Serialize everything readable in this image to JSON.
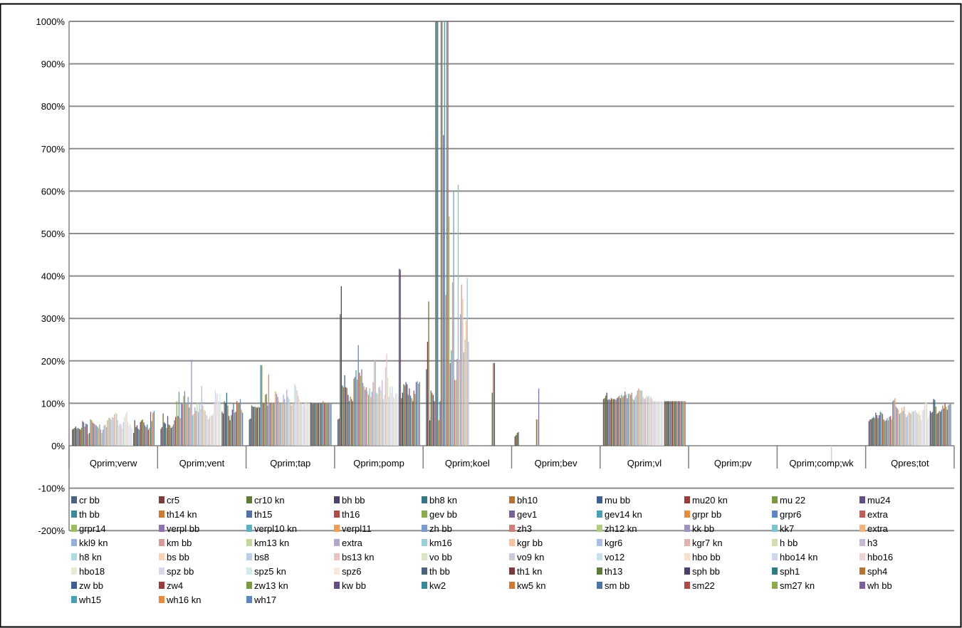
{
  "chart_data": {
    "type": "bar",
    "title": "",
    "xlabel": "",
    "ylabel": "",
    "ylim": [
      -2,
      10
    ],
    "y_format": "percent",
    "y_ticks": [
      "1000%",
      "900%",
      "800%",
      "700%",
      "600%",
      "500%",
      "400%",
      "300%",
      "200%",
      "100%",
      "0%",
      "-100%",
      "-200%"
    ],
    "y_tick_values": [
      10,
      9,
      8,
      7,
      6,
      5,
      4,
      3,
      2,
      1,
      0,
      -1,
      -2
    ],
    "grid": "horizontal",
    "legend_position": "bottom",
    "legend_columns": 10,
    "categories": [
      "Qprim;verw",
      "Qprim;vent",
      "Qprim;tap",
      "Qprim;pomp",
      "Qprim;koel",
      "Qprim;bev",
      "Qprim;vl",
      "Qprim;pv",
      "Qprim;comp;wk",
      "Qpres;tot"
    ],
    "series_names": [
      "cr bb",
      "cr5",
      "cr10 kn",
      "bh bb",
      "bh8 kn",
      "bh10",
      "mu bb",
      "mu20 kn",
      "mu 22",
      "mu24",
      "th bb",
      "th14 kn",
      "th15",
      "th16",
      "gev bb",
      "gev1",
      "gev14 kn",
      "grpr bb",
      "grpr6",
      "extra",
      "grpr14",
      "verpl bb",
      "verpl10 kn",
      "verpl11",
      "zh bb",
      "zh3",
      "zh12 kn",
      "kk bb",
      "kk7",
      "extra",
      "kkl9 kn",
      "km bb",
      "km13 kn",
      "extra",
      "km16",
      "kgr bb",
      "kgr6",
      "kgr7 kn",
      "h bb",
      "h3",
      "h8 kn",
      "bs bb",
      "bs8",
      "bs13 kn",
      "vo bb",
      "vo9 kn",
      "vo12",
      "hbo bb",
      "hbo14 kn",
      "hbo16",
      "hbo18",
      "spz bb",
      "spz5 kn",
      "spz6",
      "th bb",
      "th1 kn",
      "th13",
      "sph bb",
      "sph1",
      "sph4",
      "zw bb",
      "zw4",
      "zw13 kn",
      "kw bb",
      "kw2",
      "kw5 kn",
      "sm bb",
      "sm22",
      "sm27 kn",
      "wh bb",
      "wh15",
      "wh16 kn",
      "wh17"
    ],
    "series_colors": [
      "#4a6380",
      "#7d3b3b",
      "#5e7a37",
      "#4f3f6a",
      "#2f7a86",
      "#b8712e",
      "#3f5f94",
      "#9b3b38",
      "#7a9a3e",
      "#634d85",
      "#3a8a9a",
      "#d07a30",
      "#4f72a8",
      "#b24a47",
      "#8bab4c",
      "#7a619c",
      "#48a0b3",
      "#e88b3a",
      "#5c86c4",
      "#c85a56",
      "#9dbd5c",
      "#8c73ad",
      "#58b2c6",
      "#f29d55",
      "#7a9bd0",
      "#d27c78",
      "#b1cc7e",
      "#a392c0",
      "#7ec3d3",
      "#f6b07a",
      "#95b0da",
      "#db9a97",
      "#c2d799",
      "#b4a7cc",
      "#9ad0dd",
      "#f8c39b",
      "#a9bfe2",
      "#e3b1af",
      "#d0e0b0",
      "#c3b9d6",
      "#b0dae4",
      "#fad2b4",
      "#bccde9",
      "#eac4c2",
      "#dbe7c4",
      "#d0c8df",
      "#c3e2ea",
      "#fcdfc8",
      "#cbd8ee",
      "#efd3d2",
      "#e4edd4",
      "#dbd5e7",
      "#d2e9ef",
      "#fde8d8",
      "#4a6380",
      "#7d3b3b",
      "#5e7a37",
      "#4f3f6a",
      "#2f7a86",
      "#b8712e",
      "#3f5f94",
      "#9b3b38",
      "#7a9a3e",
      "#634d85",
      "#3a8a9a",
      "#d07a30",
      "#4f72a8",
      "#b24a47",
      "#8bab4c",
      "#7a619c",
      "#48a0b3",
      "#e88b3a",
      "#5c86c4"
    ],
    "values_by_category": [
      [
        0.38,
        0.4,
        0.42,
        0.45,
        0.4,
        0.42,
        0.4,
        0.38,
        0.42,
        0.58,
        0.55,
        0.45,
        0.52,
        0.5,
        0.28,
        0.3,
        0.62,
        0.6,
        0.55,
        0.52,
        0.5,
        0.48,
        0.45,
        0.42,
        0.5,
        0.38,
        0.3,
        0.38,
        0.48,
        0.5,
        0.44,
        0.6,
        0.66,
        0.65,
        0.62,
        0.67,
        0.66,
        0.74,
        0.78,
        0.76,
        0.6,
        0.48,
        0.52,
        0.5,
        0.4,
        0.56,
        0.68,
        0.75,
        0.8,
        0.55,
        0.45,
        0.5,
        0.42,
        0.38,
        0.3,
        0.6,
        0.44,
        0.48,
        0.4,
        0.38,
        0.56,
        0.6,
        0.62,
        0.55,
        0.48,
        0.44,
        0.5,
        0.38,
        0.42,
        0.8,
        0.58,
        0.78,
        0.82
      ],
      [
        0.4,
        0.44,
        0.76,
        0.55,
        0.52,
        0.42,
        0.7,
        0.5,
        0.48,
        0.42,
        0.45,
        0.5,
        0.6,
        0.68,
        1.05,
        0.7,
        1.27,
        0.65,
        1.0,
        0.98,
        1.17,
        1.28,
        1.0,
        0.98,
        1.15,
        0.9,
        1.0,
        2.03,
        0.72,
        0.75,
        0.9,
        0.82,
        1.02,
        0.8,
        1.0,
        0.86,
        1.41,
        0.95,
        0.85,
        0.82,
        0.72,
        0.7,
        0.62,
        0.68,
        0.72,
        0.7,
        0.75,
        1.0,
        1.3,
        1.22,
        1.25,
        1.05,
        1.22,
        0.98,
        0.8,
        0.76,
        1.05,
        1.0,
        1.25,
        0.95,
        0.7,
        0.6,
        0.72,
        0.85,
        1.0,
        0.78,
        0.8,
        1.05,
        1.0,
        1.0,
        1.1,
        0.85,
        0.78
      ],
      [
        0.62,
        0.64,
        0.95,
        0.92,
        0.92,
        0.92,
        0.9,
        0.9,
        0.92,
        0.9,
        1.9,
        1.9,
        1.0,
        1.0,
        1.2,
        1.22,
        0.95,
        1.68,
        1.0,
        1.0,
        1.0,
        1.0,
        1.0,
        1.28,
        1.22,
        1.15,
        1.05,
        1.0,
        1.0,
        1.0,
        1.2,
        1.1,
        1.02,
        1.32,
        1.15,
        1.1,
        1.0,
        0.95,
        1.0,
        1.0,
        1.45,
        1.4,
        1.3,
        1.18,
        1.1,
        1.0,
        1.0,
        0.95,
        1.0,
        1.0,
        1.05,
        1.0,
        1.0,
        1.0,
        1.02,
        1.0,
        0.98,
        1.0,
        1.0,
        1.0,
        1.0,
        1.0,
        1.0,
        1.0,
        1.0,
        1.05,
        1.0,
        1.0,
        1.0,
        1.0,
        1.0,
        1.02,
        1.0
      ],
      [
        0.62,
        0.64,
        3.1,
        3.76,
        1.42,
        1.38,
        1.66,
        1.38,
        1.36,
        1.2,
        1.05,
        1.16,
        1.1,
        1.05,
        1.58,
        1.62,
        1.78,
        1.56,
        2.37,
        1.72,
        1.65,
        1.8,
        1.48,
        1.4,
        1.32,
        1.38,
        1.28,
        1.2,
        1.35,
        1.15,
        1.27,
        1.5,
        2.0,
        2.02,
        1.25,
        1.22,
        1.37,
        1.4,
        1.3,
        1.55,
        1.1,
        1.2,
        1.85,
        2.17,
        1.6,
        1.15,
        1.4,
        1.25,
        1.4,
        1.15,
        1.1,
        1.22,
        1.25,
        1.2,
        4.17,
        4.15,
        1.12,
        1.25,
        1.45,
        1.42,
        1.5,
        1.45,
        1.2,
        1.35,
        1.18,
        1.12,
        1.05,
        1.3,
        1.22,
        1.5,
        1.52,
        1.46,
        1.5
      ],
      [
        1.8,
        2.45,
        3.4,
        0.6,
        1.3,
        1.25,
        1.2,
        1.05,
        10.0,
        10.0,
        10.0,
        0.6,
        1.05,
        10.0,
        10.0,
        7.32,
        10.0,
        3.55,
        10.0,
        10.0,
        5.4,
        1.95,
        2.25,
        3.85,
        6.0,
        1.55,
        1.55,
        2.05,
        6.15,
        2.0,
        3.1,
        3.8,
        3.45,
        2.2,
        2.5,
        2.95,
        3.95,
        2.45,
        0,
        0,
        0,
        0,
        0,
        0,
        0,
        0,
        0,
        0,
        0,
        0,
        0,
        0,
        0,
        0,
        0,
        0,
        0,
        0,
        1.25,
        1.95,
        1.95,
        0,
        0,
        0,
        0,
        0,
        0,
        0,
        0,
        0,
        0,
        0,
        0
      ],
      [
        0.22,
        0.25,
        0.3,
        0.32,
        0,
        0,
        0,
        0,
        0,
        0,
        0,
        0,
        0,
        0,
        0,
        0,
        0,
        0,
        0,
        0.62,
        0.62,
        1.35,
        0,
        0,
        0,
        0,
        0,
        0,
        0,
        0,
        0,
        0,
        0,
        0,
        0,
        0,
        0,
        0,
        0,
        0,
        0,
        0,
        0,
        0,
        0,
        0,
        0,
        0,
        0,
        0,
        0,
        0,
        0,
        0,
        0,
        0,
        0,
        0,
        0,
        0,
        0,
        0,
        0,
        0,
        0,
        0,
        0,
        0,
        0,
        0,
        0,
        0,
        0
      ],
      [
        1.1,
        1.12,
        1.18,
        1.25,
        1.08,
        1.1,
        1.08,
        1.12,
        1.1,
        1.1,
        1.1,
        1.08,
        1.12,
        1.15,
        1.18,
        1.12,
        1.2,
        1.15,
        1.18,
        1.28,
        1.2,
        1.12,
        1.22,
        1.22,
        1.2,
        1.25,
        1.1,
        1.08,
        1.15,
        1.2,
        1.3,
        1.35,
        1.32,
        1.3,
        1.3,
        1.15,
        1.1,
        1.12,
        1.18,
        1.15,
        1.18,
        1.12,
        1.15,
        1.1,
        1.05,
        1.05,
        1.05,
        1.05,
        1.05,
        1.05,
        1.05,
        1.05,
        1.05,
        1.05,
        1.05,
        1.05,
        1.05,
        1.05,
        1.05,
        1.05,
        1.05,
        1.05,
        1.05,
        1.05,
        1.05,
        1.05,
        1.05,
        1.05,
        1.05,
        1.05,
        1.05,
        1.05,
        1.05
      ],
      [
        0,
        0,
        0,
        0,
        0,
        0,
        0,
        0,
        0,
        0,
        0,
        0,
        0,
        0,
        0,
        0,
        0,
        0,
        0,
        0,
        0,
        0,
        0,
        0,
        0,
        0,
        0,
        0,
        0,
        0,
        0,
        0,
        0,
        0,
        0,
        0,
        0,
        0,
        0,
        0,
        0,
        0,
        0,
        0,
        0,
        0,
        0,
        0,
        0,
        0,
        0,
        0,
        0,
        0,
        0,
        0,
        0,
        0,
        0,
        0,
        0,
        0,
        0,
        0,
        0,
        0,
        0,
        0,
        0,
        0,
        0,
        0,
        0
      ],
      [
        0,
        0,
        0,
        0,
        0,
        0,
        0,
        0,
        0,
        0,
        0,
        0,
        0,
        0,
        0,
        0,
        0,
        0,
        0,
        0,
        0,
        0,
        0,
        0,
        0,
        0,
        0,
        0,
        0,
        0,
        0,
        0,
        0,
        0,
        0,
        0,
        0,
        0,
        0,
        0,
        0,
        0,
        0,
        0,
        0,
        -0.42,
        0,
        0,
        0,
        0,
        0,
        0,
        0,
        0,
        0,
        0,
        0,
        0,
        0,
        0,
        0,
        0,
        0,
        0,
        0,
        0,
        0,
        0,
        0,
        0,
        0,
        0,
        0
      ],
      [
        0.58,
        0.62,
        0.62,
        0.65,
        0.68,
        0.65,
        0.78,
        0.72,
        0.65,
        0.72,
        0.8,
        0.78,
        0.75,
        0.62,
        0.58,
        0.6,
        0.65,
        0.6,
        0.68,
        0.7,
        0.62,
        1.05,
        1.08,
        1.12,
        0.92,
        0.88,
        0.85,
        0.75,
        0.78,
        0.9,
        0.82,
        0.92,
        0.75,
        0.68,
        0.72,
        0.8,
        0.78,
        0.75,
        0.82,
        0.8,
        0.82,
        0.85,
        0.78,
        0.75,
        0.8,
        0.72,
        0.6,
        0.82,
        0.85,
        0.95,
        1.05,
        1.0,
        0.65,
        0.7,
        0.82,
        0.78,
        0.8,
        1.1,
        1.08,
        0.92,
        0.75,
        0.78,
        0.82,
        0.8,
        0.85,
        0.95,
        0.88,
        1.0,
        0.92,
        0.85,
        0.95,
        1.0,
        0.98
      ]
    ]
  }
}
